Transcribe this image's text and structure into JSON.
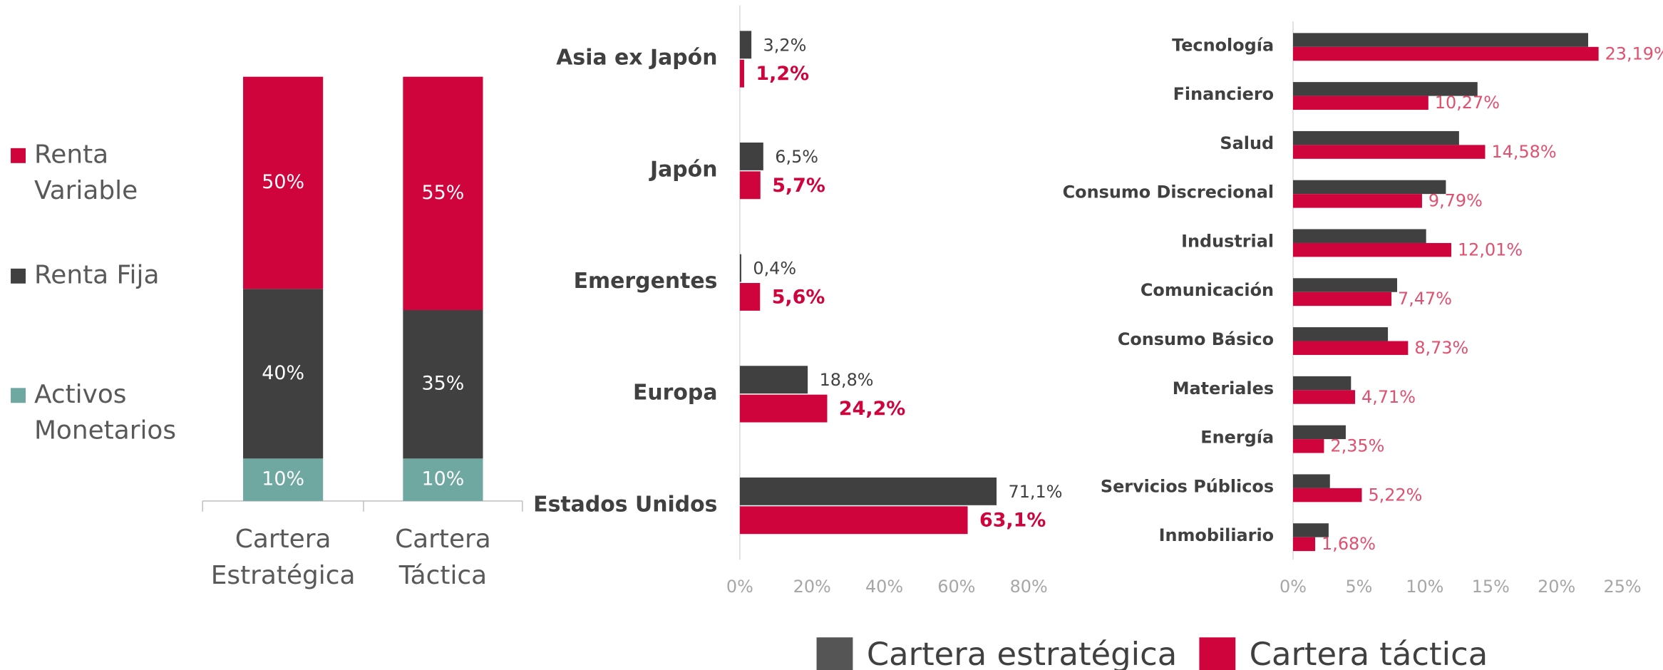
{
  "chart_data": [
    {
      "type": "stacked_bar",
      "categories": [
        "Cartera Estratégica",
        "Cartera Táctica"
      ],
      "ylim": [
        0,
        100
      ],
      "series": [
        {
          "name": "Activos Monetarios",
          "color": "#6fa8a0",
          "values": [
            10,
            10
          ],
          "value_labels": [
            "10%",
            "10%"
          ]
        },
        {
          "name": "Renta Fija",
          "color": "#404040",
          "values": [
            40,
            35
          ],
          "value_labels": [
            "40%",
            "35%"
          ]
        },
        {
          "name": "Renta Variable",
          "color": "#d0043c",
          "values": [
            50,
            55
          ],
          "value_labels": [
            "50%",
            "55%"
          ]
        }
      ]
    },
    {
      "type": "hbar",
      "categories": [
        "Asia ex Japón",
        "Japón",
        "Emergentes",
        "Europa",
        "Estados Unidos"
      ],
      "xlim": [
        0,
        80
      ],
      "xticks": [
        {
          "value": 0,
          "label": "0%"
        },
        {
          "value": 20,
          "label": "20%"
        },
        {
          "value": 40,
          "label": "40%"
        },
        {
          "value": 60,
          "label": "60%"
        },
        {
          "value": 80,
          "label": "80%"
        }
      ],
      "series": [
        {
          "name": "Cartera estratégica",
          "color": "#404040",
          "values": [
            3.2,
            6.5,
            0.4,
            18.8,
            71.1
          ],
          "value_labels": [
            "3,2%",
            "6,5%",
            "0,4%",
            "18,8%",
            "71,1%"
          ]
        },
        {
          "name": "Cartera táctica",
          "color": "#d0043c",
          "values": [
            1.2,
            5.7,
            5.6,
            24.2,
            63.1
          ],
          "value_labels": [
            "1,2%",
            "5,7%",
            "5,6%",
            "24,2%",
            "63,1%"
          ]
        }
      ],
      "legend": "bottom"
    },
    {
      "type": "hbar",
      "categories": [
        "Tecnología",
        "Financiero",
        "Salud",
        "Consumo Discrecional",
        "Industrial",
        "Comunicación",
        "Consumo Básico",
        "Materiales",
        "Energía",
        "Servicios Públicos",
        "Inmobiliario"
      ],
      "xlim": [
        0,
        25
      ],
      "xticks": [
        {
          "value": 0,
          "label": "0%"
        },
        {
          "value": 5,
          "label": "5%"
        },
        {
          "value": 10,
          "label": "10%"
        },
        {
          "value": 15,
          "label": "15%"
        },
        {
          "value": 20,
          "label": "20%"
        },
        {
          "value": 25,
          "label": "25%"
        }
      ],
      "series": [
        {
          "color": "#404040",
          "values": [
            22.4,
            14.0,
            12.6,
            11.6,
            10.1,
            7.9,
            7.2,
            4.4,
            4.0,
            2.8,
            2.7
          ]
        },
        {
          "color": "#d0043c",
          "values": [
            23.19,
            10.27,
            14.58,
            9.79,
            12.01,
            7.47,
            8.73,
            4.71,
            2.35,
            5.22,
            1.68
          ],
          "value_labels": [
            "23,19%",
            "10,27%",
            "14,58%",
            "9,79%",
            "12,01%",
            "7,47%",
            "8,73%",
            "4,71%",
            "2,35%",
            "5,22%",
            "1,68%"
          ]
        }
      ]
    }
  ]
}
